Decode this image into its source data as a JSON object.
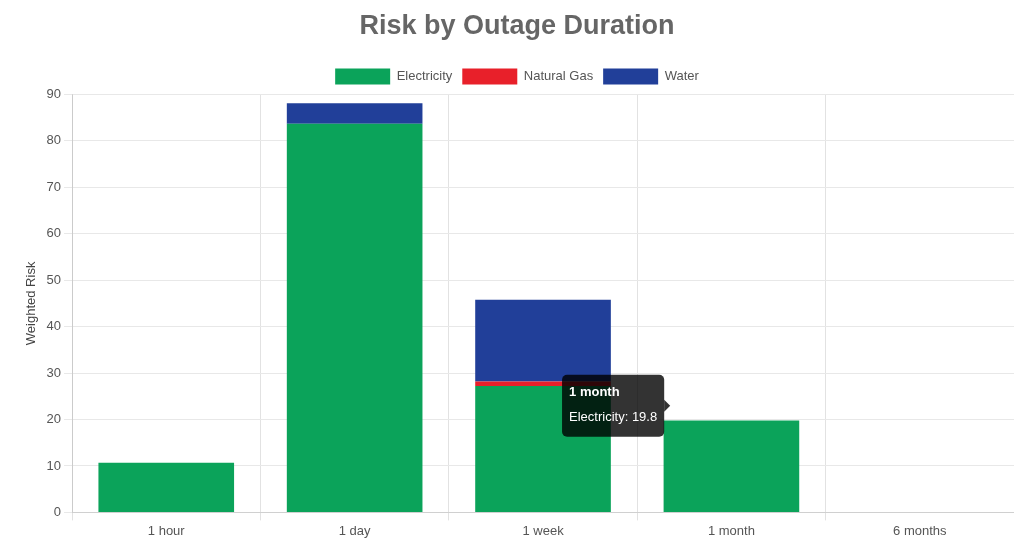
{
  "chart_data": {
    "type": "bar",
    "title": "Risk by Outage Duration",
    "ylabel": "Weighted Risk",
    "categories": [
      "1 hour",
      "1 day",
      "1 week",
      "1 month",
      "6 months"
    ],
    "stacked": true,
    "series": [
      {
        "name": "Electricity",
        "color": "#0ba35a",
        "values": [
          10.7,
          83.7,
          27.2,
          19.8,
          0
        ]
      },
      {
        "name": "Natural Gas",
        "color": "#e8202a",
        "values": [
          0,
          0,
          1,
          0,
          0
        ]
      },
      {
        "name": "Water",
        "color": "#213f99",
        "values": [
          0,
          4.4,
          17.6,
          0,
          0
        ]
      }
    ],
    "ylim": [
      0,
      90
    ],
    "yticks": [
      0,
      10,
      20,
      30,
      40,
      50,
      60,
      70,
      80,
      90
    ],
    "grid": true,
    "legend": "top",
    "annotations": [
      "1 month",
      "Electricity: 19.8"
    ]
  }
}
